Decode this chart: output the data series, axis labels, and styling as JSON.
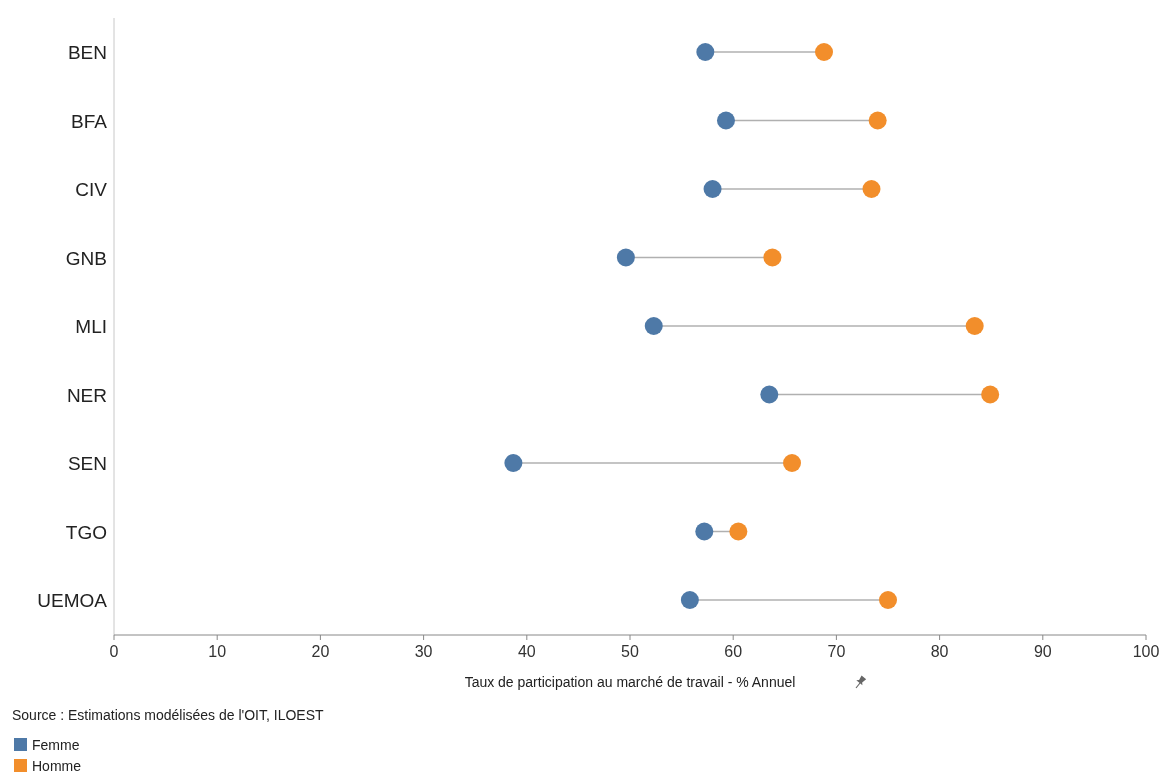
{
  "chart_data": {
    "type": "scatter",
    "orientation": "horizontal",
    "categories": [
      "BEN",
      "BFA",
      "CIV",
      "GNB",
      "MLI",
      "NER",
      "SEN",
      "TGO",
      "UEMOA"
    ],
    "series": [
      {
        "name": "Femme",
        "color": "#4e79a7",
        "values": [
          57.3,
          59.3,
          58.0,
          49.6,
          52.3,
          63.5,
          38.7,
          57.2,
          55.8
        ]
      },
      {
        "name": "Homme",
        "color": "#f28e2b",
        "values": [
          68.8,
          74.0,
          73.4,
          63.8,
          83.4,
          84.9,
          65.7,
          60.5,
          75.0
        ]
      }
    ],
    "xlabel": "Taux de participation au marché de travail - % Annuel",
    "xlim": [
      0,
      100
    ],
    "xticks": [
      0,
      10,
      20,
      30,
      40,
      50,
      60,
      70,
      80,
      90,
      100
    ],
    "annotations": [
      "Source : Estimations modélisées de l'OIT, ILOEST"
    ],
    "legend": "bottom left",
    "marker": "circle",
    "grid": false
  }
}
